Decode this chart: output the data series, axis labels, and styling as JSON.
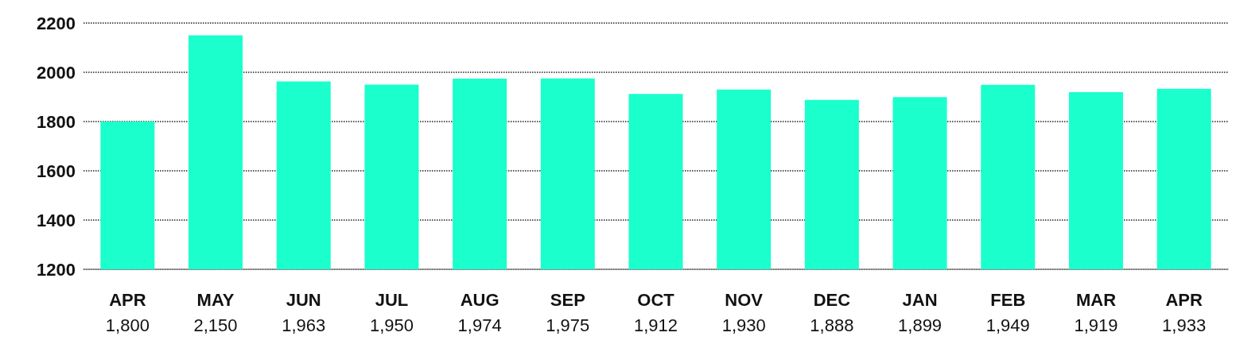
{
  "chart_data": {
    "type": "bar",
    "categories": [
      "APR",
      "MAY",
      "JUN",
      "JUL",
      "AUG",
      "SEP",
      "OCT",
      "NOV",
      "DEC",
      "JAN",
      "FEB",
      "MAR",
      "APR"
    ],
    "values": [
      1800,
      2150,
      1963,
      1950,
      1974,
      1975,
      1912,
      1930,
      1888,
      1899,
      1949,
      1919,
      1933
    ],
    "value_labels": [
      "1,800",
      "2,150",
      "1,963",
      "1,950",
      "1,974",
      "1,975",
      "1,912",
      "1,930",
      "1,888",
      "1,899",
      "1,949",
      "1,919",
      "1,933"
    ],
    "color": "#1affcc",
    "ylim": [
      1200,
      2200
    ],
    "yticks": [
      1200,
      1400,
      1600,
      1800,
      2000,
      2200
    ],
    "grid": "y"
  }
}
